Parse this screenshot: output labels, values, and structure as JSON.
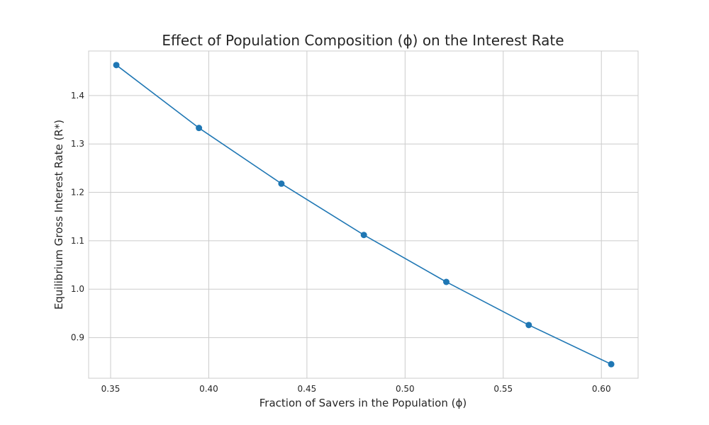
{
  "chart_data": {
    "type": "line",
    "title": "Effect of Population Composition (ϕ) on the Interest Rate",
    "xlabel": "Fraction of Savers in the Population (ϕ)",
    "ylabel": "Equilibrium Gross Interest Rate (R*)",
    "xlim": [
      0.3388,
      0.6187
    ],
    "ylim": [
      0.816,
      1.492
    ],
    "x_ticks": [
      0.35,
      0.4,
      0.45,
      0.5,
      0.55,
      0.6
    ],
    "y_ticks": [
      0.9,
      1.0,
      1.1,
      1.2,
      1.3,
      1.4
    ],
    "grid": true,
    "series": [
      {
        "color": "#1f77b4",
        "marker": "circle",
        "x": [
          0.3529,
          0.395,
          0.437,
          0.479,
          0.521,
          0.563,
          0.605
        ],
        "y": [
          1.463,
          1.333,
          1.218,
          1.112,
          1.015,
          0.926,
          0.845
        ]
      }
    ]
  }
}
